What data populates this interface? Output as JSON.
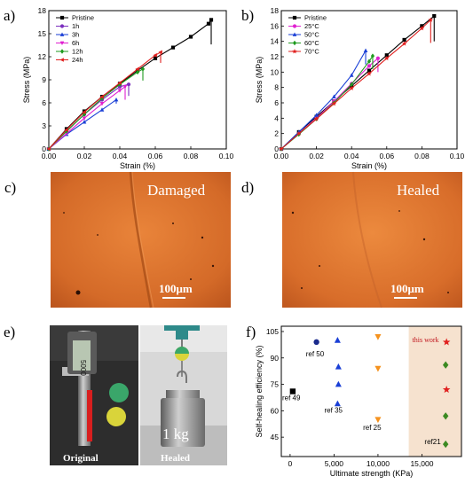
{
  "panels": {
    "a": {
      "label": "a)"
    },
    "b": {
      "label": "b)"
    },
    "c": {
      "label": "c)",
      "overlay": "Damaged",
      "scale_bar": "100μm"
    },
    "d": {
      "label": "d)",
      "overlay": "Healed",
      "scale_bar": "100μm"
    },
    "e": {
      "label": "e)",
      "left_caption": "Original",
      "right_caption": "Healed",
      "weight_text": "1 kg",
      "caliper_display": "5000"
    },
    "f": {
      "label": "f)"
    }
  },
  "chart_data": [
    {
      "id": "a",
      "type": "line",
      "xlabel": "Strain (%)",
      "ylabel": "Stress (MPa)",
      "xlim": [
        0,
        0.1
      ],
      "ylim": [
        0,
        18
      ],
      "xticks": [
        "0.00",
        "0.02",
        "0.04",
        "0.06",
        "0.08",
        "0.10"
      ],
      "yticks": [
        "0",
        "3",
        "6",
        "9",
        "12",
        "15",
        "18"
      ],
      "legend_position": "top-left",
      "series": [
        {
          "name": "Pristine",
          "color": "#000000",
          "marker": "square",
          "x": [
            0,
            0.01,
            0.02,
            0.03,
            0.04,
            0.05,
            0.06,
            0.07,
            0.08,
            0.09,
            0.0915
          ],
          "y": [
            0,
            2.6,
            4.9,
            6.8,
            8.5,
            10.2,
            11.8,
            13.2,
            14.6,
            16.3,
            16.8
          ],
          "drop_to": 13.6
        },
        {
          "name": "1h",
          "color": "#7b2fbe",
          "marker": "circle",
          "x": [
            0,
            0.01,
            0.02,
            0.03,
            0.04,
            0.045
          ],
          "y": [
            0,
            2.3,
            4.5,
            6.4,
            8.1,
            8.4
          ],
          "drop_to": 6.9
        },
        {
          "name": "3h",
          "color": "#1a3fd6",
          "marker": "triangle",
          "x": [
            0,
            0.01,
            0.02,
            0.03,
            0.038
          ],
          "y": [
            0,
            1.9,
            3.5,
            5.1,
            6.4
          ],
          "drop_to": 5.9
        },
        {
          "name": "6h",
          "color": "#e01fd0",
          "marker": "triangle-down",
          "x": [
            0,
            0.01,
            0.02,
            0.03,
            0.04,
            0.043
          ],
          "y": [
            0,
            2.0,
            4.0,
            5.9,
            7.6,
            8.1
          ],
          "drop_to": 6.4
        },
        {
          "name": "12h",
          "color": "#1f9a1f",
          "marker": "diamond",
          "x": [
            0,
            0.01,
            0.02,
            0.03,
            0.04,
            0.05,
            0.053
          ],
          "y": [
            0,
            2.3,
            4.5,
            6.6,
            8.4,
            10.0,
            10.4
          ],
          "drop_to": 8.9
        },
        {
          "name": "24h",
          "color": "#e0201f",
          "marker": "triangle-left",
          "x": [
            0,
            0.01,
            0.02,
            0.03,
            0.04,
            0.05,
            0.06,
            0.063
          ],
          "y": [
            0,
            2.5,
            4.8,
            6.8,
            8.6,
            10.4,
            12.2,
            12.6
          ],
          "drop_to": 11.2
        }
      ]
    },
    {
      "id": "b",
      "type": "line",
      "xlabel": "Strain (%)",
      "ylabel": "Stress (MPa)",
      "xlim": [
        0,
        0.1
      ],
      "ylim": [
        0,
        18
      ],
      "xticks": [
        "0.00",
        "0.02",
        "0.04",
        "0.06",
        "0.08",
        "0.10"
      ],
      "yticks": [
        "0",
        "2",
        "4",
        "6",
        "8",
        "10",
        "12",
        "14",
        "16",
        "18"
      ],
      "legend_position": "top-left",
      "series": [
        {
          "name": "Pristine",
          "color": "#000000",
          "marker": "square",
          "x": [
            0,
            0.01,
            0.02,
            0.03,
            0.04,
            0.05,
            0.06,
            0.07,
            0.08,
            0.087
          ],
          "y": [
            0,
            2.2,
            4.2,
            6.2,
            8.2,
            10.2,
            12.2,
            14.2,
            16.0,
            17.3
          ],
          "drop_to": 14.0
        },
        {
          "name": "25°C",
          "color": "#e01fd0",
          "marker": "circle",
          "x": [
            0,
            0.01,
            0.02,
            0.03,
            0.04,
            0.05,
            0.055
          ],
          "y": [
            0,
            2.0,
            4.0,
            6.2,
            8.5,
            10.8,
            11.8
          ],
          "drop_to": 10.0
        },
        {
          "name": "50°C",
          "color": "#1a3fd6",
          "marker": "triangle",
          "x": [
            0,
            0.01,
            0.02,
            0.03,
            0.04,
            0.048
          ],
          "y": [
            0,
            2.2,
            4.4,
            6.8,
            9.6,
            12.8
          ],
          "drop_to": 11.0
        },
        {
          "name": "60°C",
          "color": "#1f9a1f",
          "marker": "diamond",
          "x": [
            0,
            0.01,
            0.02,
            0.03,
            0.04,
            0.05,
            0.052
          ],
          "y": [
            0,
            1.9,
            3.9,
            6.0,
            8.4,
            11.4,
            12.1
          ],
          "drop_to": 10.4
        },
        {
          "name": "70°C",
          "color": "#e0201f",
          "marker": "star",
          "x": [
            0,
            0.01,
            0.02,
            0.03,
            0.04,
            0.05,
            0.06,
            0.07,
            0.08,
            0.085
          ],
          "y": [
            0,
            2.0,
            3.9,
            5.9,
            7.9,
            9.8,
            11.8,
            13.7,
            15.7,
            16.8
          ],
          "drop_to": 13.8
        }
      ]
    },
    {
      "id": "f",
      "type": "scatter",
      "xlabel": "Ultimate strength (KPa)",
      "ylabel": "Self-healing efficiency (%)",
      "xlim": [
        -1000,
        19500
      ],
      "ylim": [
        34,
        108
      ],
      "xticks": [
        0,
        5000,
        10000,
        15000
      ],
      "xtick_labels": [
        "0",
        "5,000",
        "10,000",
        "15,000"
      ],
      "yticks": [
        45,
        60,
        75,
        90,
        105
      ],
      "highlight_region": [
        13500,
        19500
      ],
      "points": [
        {
          "ref": "ref 49",
          "marker": "square",
          "color": "#000000",
          "x": 300,
          "y": 71
        },
        {
          "ref": "ref 50",
          "marker": "circle",
          "color": "#1a2a8c",
          "x": 3000,
          "y": 99
        },
        {
          "ref": "ref 35",
          "marker": "triangle",
          "color": "#1a3fd6",
          "x": 5400,
          "y": 100
        },
        {
          "ref": "ref 35",
          "marker": "triangle",
          "color": "#1a3fd6",
          "x": 5500,
          "y": 85
        },
        {
          "ref": "ref 35",
          "marker": "triangle",
          "color": "#1a3fd6",
          "x": 5500,
          "y": 75
        },
        {
          "ref": "ref 35",
          "marker": "triangle",
          "color": "#1a3fd6",
          "x": 5400,
          "y": 64
        },
        {
          "ref": "ref 25",
          "marker": "triangle-down",
          "color": "#f5921e",
          "x": 10000,
          "y": 102
        },
        {
          "ref": "ref 25",
          "marker": "triangle-down",
          "color": "#f5921e",
          "x": 10000,
          "y": 84
        },
        {
          "ref": "ref 25",
          "marker": "triangle-down",
          "color": "#f5921e",
          "x": 10000,
          "y": 55
        },
        {
          "ref": "ref 21",
          "marker": "diamond",
          "color": "#3c8a22",
          "x": 17700,
          "y": 86
        },
        {
          "ref": "ref 21",
          "marker": "diamond",
          "color": "#3c8a22",
          "x": 17700,
          "y": 57
        },
        {
          "ref": "ref 21",
          "marker": "diamond",
          "color": "#3c8a22",
          "x": 17700,
          "y": 41
        },
        {
          "ref": "this work",
          "marker": "star",
          "color": "#e0201f",
          "x": 17800,
          "y": 99
        },
        {
          "ref": "this work",
          "marker": "star",
          "color": "#e0201f",
          "x": 17800,
          "y": 72
        }
      ],
      "annotations": [
        {
          "text": "ref 49",
          "x": -900,
          "y": 66
        },
        {
          "text": "ref 50",
          "x": 1800,
          "y": 91
        },
        {
          "text": "ref 35",
          "x": 3900,
          "y": 59
        },
        {
          "text": "ref 25",
          "x": 8300,
          "y": 49
        },
        {
          "text": "this work",
          "x": 13900,
          "y": 99,
          "color": "#c0141c"
        },
        {
          "text": "ref21",
          "x": 15300,
          "y": 41
        }
      ]
    }
  ]
}
